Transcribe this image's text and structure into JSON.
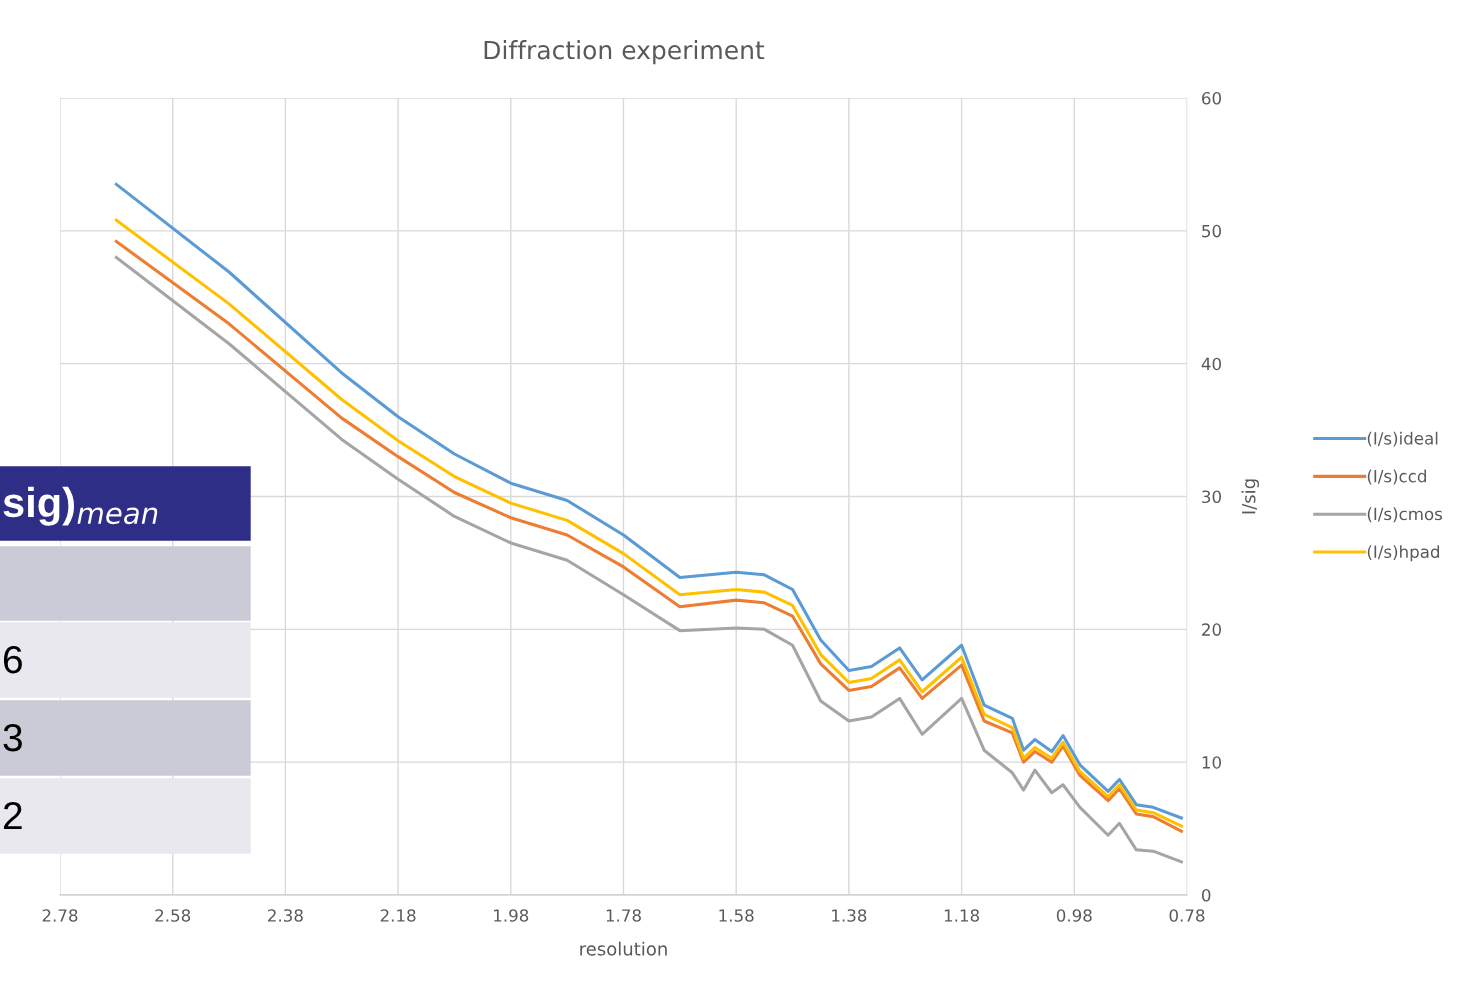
{
  "chart_data": {
    "type": "line",
    "title": "Diffraction experiment",
    "xlabel": "resolution",
    "ylabel": "I/sig",
    "x": [
      2.68,
      2.48,
      2.28,
      2.18,
      2.08,
      1.98,
      1.88,
      1.78,
      1.68,
      1.58,
      1.53,
      1.48,
      1.43,
      1.38,
      1.34,
      1.29,
      1.25,
      1.18,
      1.14,
      1.09,
      1.07,
      1.05,
      1.02,
      1.0,
      0.97,
      0.92,
      0.9,
      0.87,
      0.84,
      0.79
    ],
    "series": [
      {
        "name": "(I/s)ideal",
        "color": "#5b9bd5",
        "values": [
          53.5,
          46.9,
          39.3,
          36.0,
          33.2,
          31.0,
          29.7,
          27.1,
          23.9,
          24.3,
          24.1,
          23.0,
          19.2,
          16.9,
          17.2,
          18.6,
          16.2,
          18.8,
          14.3,
          13.3,
          10.9,
          11.7,
          10.8,
          12.0,
          9.8,
          7.8,
          8.7,
          6.8,
          6.6,
          5.8
        ]
      },
      {
        "name": "(I/s)ccd",
        "color": "#ed7d31",
        "values": [
          49.2,
          43.0,
          35.9,
          33.0,
          30.3,
          28.4,
          27.1,
          24.7,
          21.7,
          22.2,
          22.0,
          21.0,
          17.4,
          15.4,
          15.7,
          17.1,
          14.8,
          17.3,
          13.1,
          12.2,
          10.0,
          10.8,
          10.0,
          11.2,
          9.0,
          7.1,
          8.0,
          6.1,
          5.9,
          4.8
        ]
      },
      {
        "name": "(I/s)cmos",
        "color": "#a5a5a5",
        "values": [
          48.0,
          41.5,
          34.3,
          31.3,
          28.5,
          26.5,
          25.2,
          22.6,
          19.9,
          20.1,
          20.0,
          18.8,
          14.6,
          13.1,
          13.4,
          14.8,
          12.1,
          14.8,
          10.9,
          9.2,
          7.9,
          9.4,
          7.7,
          8.3,
          6.6,
          4.5,
          5.4,
          3.4,
          3.3,
          2.5
        ]
      },
      {
        "name": "(I/s)hpad",
        "color": "#ffc000",
        "values": [
          50.8,
          44.5,
          37.3,
          34.2,
          31.5,
          29.5,
          28.2,
          25.7,
          22.6,
          23.0,
          22.8,
          21.8,
          18.1,
          16.0,
          16.3,
          17.7,
          15.3,
          17.9,
          13.6,
          12.6,
          10.3,
          11.1,
          10.3,
          11.5,
          9.3,
          7.4,
          8.3,
          6.4,
          6.2,
          5.2
        ]
      }
    ],
    "xlim": [
      2.78,
      0.78
    ],
    "xticks": [
      2.78,
      2.58,
      2.38,
      2.18,
      1.98,
      1.78,
      1.58,
      1.38,
      1.18,
      0.98,
      0.78
    ],
    "ylim": [
      0,
      60
    ],
    "yticks": [
      0,
      10,
      20,
      30,
      40,
      50,
      60
    ],
    "grid": true,
    "legend": "right",
    "marker": "none",
    "line_style": "solid",
    "annotations": [
      "sig)$_{mean}$",
      "6",
      "3",
      "2"
    ]
  }
}
